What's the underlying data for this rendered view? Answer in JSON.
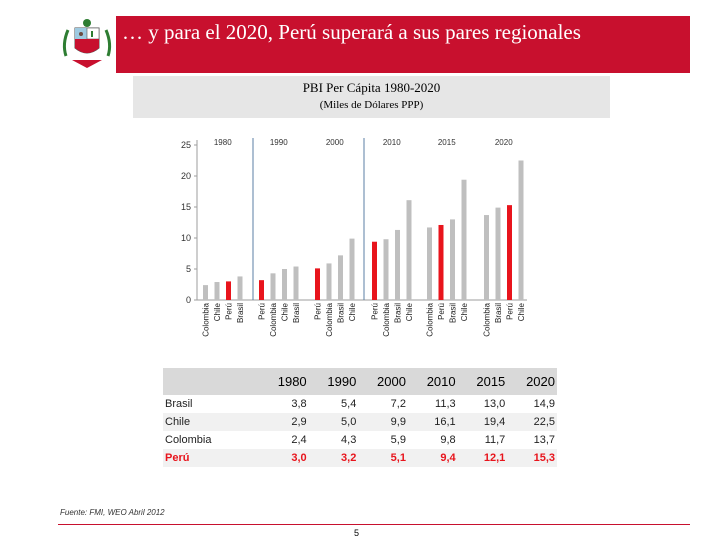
{
  "header": {
    "title": "… y para el 2020, Perú superará a sus pares regionales"
  },
  "chart_data": {
    "type": "bar",
    "title": "PBI Per Cápita 1980-2020",
    "subtitle": "(Miles de Dólares PPP)",
    "ylim": [
      0,
      25
    ],
    "yticks": [
      0,
      5,
      10,
      15,
      20,
      25
    ],
    "groups": [
      {
        "year": "1980",
        "bars": [
          {
            "label": "Colombia",
            "value": 2.4
          },
          {
            "label": "Chile",
            "value": 2.9
          },
          {
            "label": "Perú",
            "value": 3.0
          },
          {
            "label": "Brasil",
            "value": 3.8
          }
        ]
      },
      {
        "year": "1990",
        "bars": [
          {
            "label": "Perú",
            "value": 3.2
          },
          {
            "label": "Colombia",
            "value": 4.3
          },
          {
            "label": "Chile",
            "value": 5.0
          },
          {
            "label": "Brasil",
            "value": 5.4
          }
        ]
      },
      {
        "year": "2000",
        "bars": [
          {
            "label": "Perú",
            "value": 5.1
          },
          {
            "label": "Colombia",
            "value": 5.9
          },
          {
            "label": "Brasil",
            "value": 7.2
          },
          {
            "label": "Chile",
            "value": 9.9
          }
        ]
      },
      {
        "year": "2010",
        "bars": [
          {
            "label": "Perú",
            "value": 9.4
          },
          {
            "label": "Colombia",
            "value": 9.8
          },
          {
            "label": "Brasil",
            "value": 11.3
          },
          {
            "label": "Chile",
            "value": 16.1
          }
        ]
      },
      {
        "year": "2015",
        "bars": [
          {
            "label": "Colombia",
            "value": 11.7
          },
          {
            "label": "Perú",
            "value": 12.1
          },
          {
            "label": "Brasil",
            "value": 13.0
          },
          {
            "label": "Chile",
            "value": 19.4
          }
        ]
      },
      {
        "year": "2020",
        "bars": [
          {
            "label": "Colombia",
            "value": 13.7
          },
          {
            "label": "Brasil",
            "value": 14.9
          },
          {
            "label": "Perú",
            "value": 15.3
          },
          {
            "label": "Chile",
            "value": 22.5
          }
        ]
      }
    ],
    "highlight": "Perú",
    "colors": {
      "highlight": "#e8141c",
      "other": "#bfbfbf",
      "axis": "#9e9e9e",
      "separator": "#5b7fa6"
    }
  },
  "table": {
    "headers": [
      "",
      "1980",
      "1990",
      "2000",
      "2010",
      "2015",
      "2020"
    ],
    "rows": [
      [
        "Brasil",
        "3,8",
        "5,4",
        "7,2",
        "11,3",
        "13,0",
        "14,9"
      ],
      [
        "Chile",
        "2,9",
        "5,0",
        "9,9",
        "16,1",
        "19,4",
        "22,5"
      ],
      [
        "Colombia",
        "2,4",
        "4,3",
        "5,9",
        "9,8",
        "11,7",
        "13,7"
      ],
      [
        "Perú",
        "3,0",
        "3,2",
        "5,1",
        "9,4",
        "12,1",
        "15,3"
      ]
    ]
  },
  "footer": {
    "source": "Fuente: FMI, WEO Abril 2012",
    "page": "5"
  }
}
